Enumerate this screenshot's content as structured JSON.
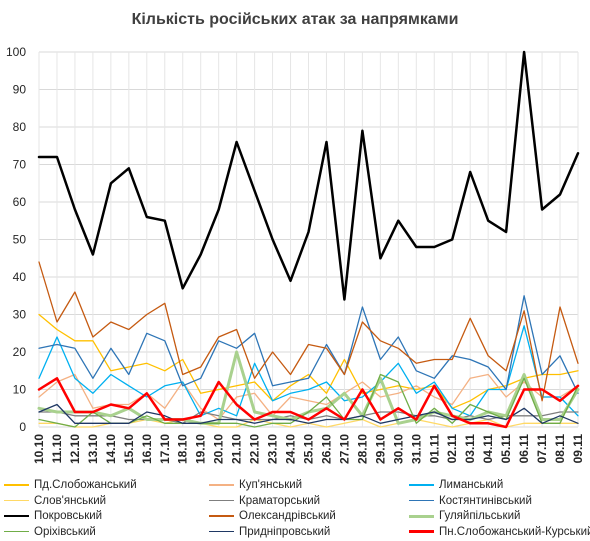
{
  "title": "Кількість російських атак за напрямками",
  "chart_data": {
    "type": "line",
    "title": "Кількість російських атак за напрямками",
    "xlabel": "",
    "ylabel": "",
    "ylim": [
      0,
      100
    ],
    "yticks": [
      "0",
      "10",
      "20",
      "30",
      "40",
      "50",
      "60",
      "70",
      "80",
      "90",
      "100"
    ],
    "grid": true,
    "legend_position": "bottom",
    "categories": [
      "10.10",
      "11.10",
      "12.10",
      "13.10",
      "14.10",
      "15.10",
      "16.10",
      "17.10",
      "18.10",
      "19.10",
      "20.10",
      "21.10",
      "22.10",
      "23.10",
      "24.10",
      "25.10",
      "26.10",
      "27.10",
      "28.10",
      "29.10",
      "30.10",
      "31.10",
      "01.11",
      "02.11",
      "03.11",
      "04.11",
      "05.11",
      "06.11",
      "07.11",
      "08.11",
      "09.11"
    ],
    "series": [
      {
        "name": "Пд.Слобожанський",
        "color": "#ffc000",
        "width": 1.3,
        "values": [
          30,
          26,
          23,
          23,
          15,
          16,
          17,
          15,
          18,
          9,
          10,
          11,
          12,
          7,
          11,
          14,
          9,
          18,
          9,
          10,
          11,
          10,
          11,
          5,
          7,
          10,
          11,
          13,
          14,
          14,
          15
        ]
      },
      {
        "name": "Куп'янський",
        "color": "#f4b183",
        "width": 1.3,
        "values": [
          8,
          12,
          14,
          5,
          6,
          6,
          9,
          5,
          12,
          5,
          2,
          8,
          9,
          3,
          8,
          7,
          6,
          9,
          12,
          8,
          9,
          11,
          8,
          6,
          13,
          14,
          8,
          12,
          8,
          8,
          11
        ]
      },
      {
        "name": "Лиманський",
        "color": "#00b0f0",
        "width": 1.3,
        "values": [
          13,
          24,
          13,
          9,
          14,
          11,
          8,
          11,
          12,
          3,
          5,
          3,
          17,
          7,
          9,
          10,
          12,
          7,
          8,
          12,
          17,
          9,
          12,
          5,
          3,
          10,
          10,
          27,
          8,
          8,
          3
        ]
      },
      {
        "name": "Слов'янський",
        "color": "#ffd966",
        "width": 1.3,
        "values": [
          1,
          1,
          0,
          0,
          1,
          1,
          2,
          1,
          2,
          1,
          0,
          0,
          2,
          1,
          0,
          1,
          0,
          1,
          2,
          0,
          1,
          2,
          1,
          0,
          1,
          2,
          0,
          1,
          1,
          1,
          1
        ]
      },
      {
        "name": "Краматорський",
        "color": "#7f7f7f",
        "width": 1.3,
        "values": [
          4,
          4,
          3,
          3,
          3,
          2,
          2,
          2,
          1,
          4,
          3,
          2,
          2,
          2,
          3,
          2,
          3,
          2,
          3,
          4,
          4,
          3,
          3,
          2,
          3,
          2,
          3,
          3,
          3,
          4,
          4
        ]
      },
      {
        "name": "Костянтинівський",
        "color": "#2e75b6",
        "width": 1.3,
        "values": [
          21,
          22,
          21,
          13,
          21,
          14,
          25,
          23,
          11,
          13,
          23,
          21,
          25,
          11,
          12,
          13,
          22,
          14,
          32,
          18,
          24,
          15,
          13,
          19,
          18,
          16,
          10,
          35,
          14,
          19,
          9
        ]
      },
      {
        "name": "Покровський",
        "color": "#000000",
        "width": 2.5,
        "values": [
          72,
          72,
          58,
          46,
          65,
          69,
          56,
          55,
          37,
          46,
          58,
          76,
          63,
          50,
          39,
          52,
          76,
          34,
          79,
          45,
          55,
          48,
          48,
          50,
          68,
          55,
          52,
          100,
          58,
          62,
          73
        ]
      },
      {
        "name": "Олександрівський",
        "color": "#c55a11",
        "width": 1.3,
        "values": [
          44,
          28,
          36,
          24,
          28,
          26,
          30,
          33,
          14,
          16,
          24,
          26,
          13,
          20,
          14,
          22,
          21,
          14,
          28,
          23,
          21,
          17,
          18,
          18,
          29,
          19,
          15,
          31,
          7,
          32,
          17
        ]
      },
      {
        "name": "Гуляйпільський",
        "color": "#a9d18e",
        "width": 3.0,
        "values": [
          5,
          4,
          4,
          4,
          3,
          5,
          2,
          2,
          2,
          1,
          1,
          20,
          4,
          3,
          2,
          4,
          5,
          9,
          3,
          13,
          1,
          2,
          4,
          3,
          2,
          4,
          3,
          14,
          2,
          2,
          10
        ]
      },
      {
        "name": "Оріхівський",
        "color": "#70ad47",
        "width": 1.3,
        "values": [
          2,
          1,
          0,
          4,
          1,
          1,
          3,
          1,
          1,
          1,
          1,
          1,
          0,
          1,
          1,
          4,
          8,
          2,
          2,
          14,
          12,
          1,
          5,
          1,
          6,
          4,
          2,
          13,
          1,
          1,
          11
        ]
      },
      {
        "name": "Придніпровський",
        "color": "#1f3864",
        "width": 1.3,
        "values": [
          4,
          6,
          1,
          1,
          1,
          1,
          4,
          3,
          1,
          1,
          2,
          2,
          1,
          2,
          2,
          1,
          2,
          2,
          3,
          1,
          2,
          3,
          4,
          2,
          2,
          3,
          2,
          5,
          1,
          3,
          1
        ]
      },
      {
        "name": "Пн.Слобожанський-Курський",
        "color": "#ff0000",
        "width": 2.5,
        "values": [
          10,
          13,
          4,
          4,
          6,
          5,
          9,
          2,
          2,
          3,
          12,
          6,
          2,
          4,
          4,
          2,
          5,
          2,
          10,
          2,
          5,
          2,
          11,
          3,
          1,
          1,
          0,
          10,
          10,
          7,
          11
        ]
      }
    ]
  },
  "legend": [
    "Пд.Слобожанський",
    "Куп'янський",
    "Лиманський",
    "Слов'янський",
    "Краматорський",
    "Костянтинівський",
    "Покровський",
    "Олександрівський",
    "Гуляйпільський",
    "Оріхівський",
    "Придніпровський",
    "Пн.Слобожанський-Курський"
  ]
}
